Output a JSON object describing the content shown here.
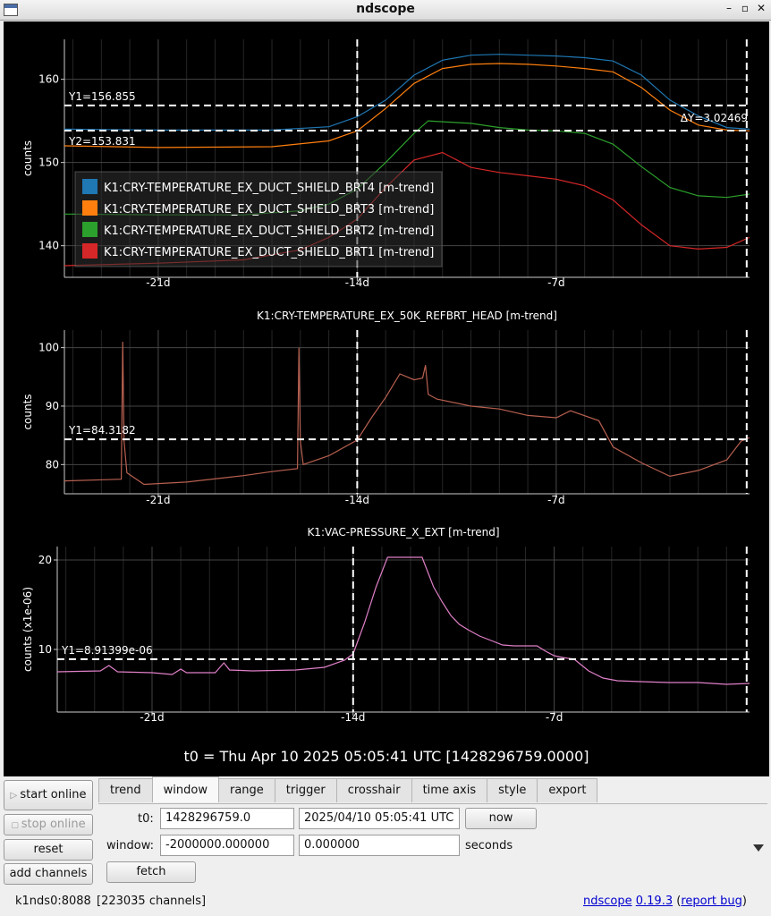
{
  "window": {
    "title": "ndscope"
  },
  "main_title": "t0 = Thu Apr 10 2025 05:05:41 UTC [1428296759.0000]",
  "chart_data": [
    {
      "type": "line",
      "title": "",
      "ylabel": "counts",
      "xlim": [
        -24.3,
        -0.2
      ],
      "ylim": [
        136.2,
        164.8
      ],
      "yticks": [
        140,
        150,
        160
      ],
      "xticks": [
        {
          "v": -21,
          "label": "-21d"
        },
        {
          "v": -14,
          "label": "-14d"
        },
        {
          "v": -7,
          "label": "-7d"
        }
      ],
      "grid": true,
      "legend": "top-left",
      "cursors": {
        "vertical": [
          -14.0,
          -0.3
        ],
        "horizontal": [
          {
            "value": 156.855,
            "label": "Y1=156.855"
          },
          {
            "value": 153.831,
            "label": "Y2=153.831"
          }
        ],
        "delta_label": "ΔY=3.02469"
      },
      "series": [
        {
          "name": "K1:CRY-TEMPERATURE_EX_DUCT_SHIELD_BRT4 [m-trend]",
          "color": "#1f77b4",
          "x": [
            -24.3,
            -21,
            -17,
            -15,
            -14,
            -13,
            -12,
            -11,
            -10,
            -9,
            -8,
            -7,
            -6,
            -5,
            -4,
            -3,
            -2,
            -1,
            -0.2
          ],
          "y": [
            154,
            153.9,
            153.9,
            154.3,
            155.5,
            157.5,
            160.5,
            162.3,
            162.9,
            163.0,
            162.9,
            162.8,
            162.6,
            162.2,
            160.5,
            157.5,
            155.6,
            154.2,
            154.0
          ]
        },
        {
          "name": "K1:CRY-TEMPERATURE_EX_DUCT_SHIELD_BRT3 [m-trend]",
          "color": "#ff7f0e",
          "x": [
            -24.3,
            -21,
            -17,
            -15,
            -14,
            -13,
            -12,
            -11,
            -10,
            -9,
            -8,
            -7,
            -6,
            -5,
            -4,
            -3,
            -2,
            -1,
            -0.2
          ],
          "y": [
            152.0,
            151.8,
            151.9,
            152.6,
            153.8,
            156.5,
            159.5,
            161.3,
            161.8,
            161.9,
            161.8,
            161.6,
            161.3,
            160.9,
            159.0,
            156.3,
            154.5,
            153.9,
            153.8
          ]
        },
        {
          "name": "K1:CRY-TEMPERATURE_EX_DUCT_SHIELD_BRT2 [m-trend]",
          "color": "#2ca02c",
          "x": [
            -24.3,
            -21,
            -18,
            -16,
            -15,
            -14,
            -13,
            -12,
            -11.5,
            -11,
            -10,
            -9,
            -8,
            -7,
            -6,
            -5,
            -4,
            -3,
            -2,
            -1,
            -0.2
          ],
          "y": [
            143.8,
            143.7,
            143.7,
            144.2,
            145.0,
            146.8,
            150.0,
            153.5,
            155.0,
            154.9,
            154.7,
            154.2,
            153.9,
            153.8,
            153.5,
            152.2,
            149.5,
            147.0,
            146.0,
            145.8,
            146.2
          ]
        },
        {
          "name": "K1:CRY-TEMPERATURE_EX_DUCT_SHIELD_BRT1 [m-trend]",
          "color": "#d62728",
          "x": [
            -24.3,
            -21,
            -18,
            -16,
            -15,
            -14,
            -13,
            -12,
            -11,
            -10,
            -9,
            -8,
            -7,
            -6,
            -5,
            -4,
            -3,
            -2,
            -1,
            -0.2
          ],
          "y": [
            137.6,
            137.9,
            138.3,
            139.5,
            141.0,
            143.2,
            147.0,
            150.3,
            151.2,
            149.4,
            148.8,
            148.4,
            148.0,
            147.2,
            145.5,
            142.5,
            140.0,
            139.6,
            139.8,
            141.0
          ]
        }
      ]
    },
    {
      "type": "line",
      "title": "K1:CRY-TEMPERATURE_EX_50K_REFBRT_HEAD [m-trend]",
      "ylabel": "counts",
      "xlim": [
        -24.3,
        -0.2
      ],
      "ylim": [
        75,
        103
      ],
      "yticks": [
        80,
        90,
        100
      ],
      "xticks": [
        {
          "v": -21,
          "label": "-21d"
        },
        {
          "v": -14,
          "label": "-14d"
        },
        {
          "v": -7,
          "label": "-7d"
        }
      ],
      "grid": true,
      "cursors": {
        "vertical": [
          -14.0,
          -0.3
        ],
        "horizontal": [
          {
            "value": 84.3182,
            "label": "Y1=84.3182"
          }
        ]
      },
      "series": [
        {
          "name": "K1:CRY-TEMPERATURE_EX_50K_REFBRT_HEAD [m-trend]",
          "color": "#b86050",
          "x": [
            -24.3,
            -22.3,
            -22.25,
            -22.2,
            -22.1,
            -21.5,
            -20,
            -18,
            -17,
            -16.1,
            -16.05,
            -16.0,
            -15.9,
            -15,
            -14,
            -13.5,
            -13,
            -12.5,
            -12,
            -11.7,
            -11.6,
            -11.5,
            -11.2,
            -10,
            -9,
            -8,
            -7,
            -6.5,
            -5.5,
            -5,
            -4,
            -3,
            -2,
            -1,
            -0.5,
            -0.2
          ],
          "y": [
            77.2,
            77.5,
            101,
            84,
            78.6,
            76.6,
            77.0,
            78.1,
            78.8,
            79.3,
            100,
            84,
            80.0,
            81.5,
            84.2,
            88.0,
            91.5,
            95.5,
            94.5,
            94.8,
            97,
            92,
            91.2,
            90.0,
            89.5,
            88.4,
            88.0,
            89.2,
            87.5,
            83.0,
            80.3,
            78.0,
            79.0,
            80.8,
            84.0,
            84.6
          ]
        }
      ]
    },
    {
      "type": "line",
      "title": "K1:VAC-PRESSURE_X_EXT [m-trend]",
      "ylabel": "counts (x1e-06)",
      "xlim": [
        -24.3,
        -0.2
      ],
      "ylim": [
        3,
        21.5
      ],
      "yticks": [
        10,
        20
      ],
      "xticks": [
        {
          "v": -21,
          "label": "-21d"
        },
        {
          "v": -14,
          "label": "-14d"
        },
        {
          "v": -7,
          "label": "-7d"
        }
      ],
      "grid": true,
      "cursors": {
        "vertical": [
          -14.0,
          -0.3
        ],
        "horizontal": [
          {
            "value": 8.91399,
            "label": "Y1=8.91399e-06"
          }
        ]
      },
      "series": [
        {
          "name": "K1:VAC-PRESSURE_X_EXT [m-trend]",
          "color": "#e080c8",
          "x": [
            -24.3,
            -22.8,
            -22.5,
            -22.2,
            -21,
            -20.3,
            -20.0,
            -19.8,
            -18.8,
            -18.5,
            -18.3,
            -17.5,
            -16,
            -15,
            -14.3,
            -14.0,
            -13.6,
            -13.2,
            -12.8,
            -12.4,
            -12.0,
            -11.6,
            -11.2,
            -10.9,
            -10.6,
            -10.3,
            -10.0,
            -9.6,
            -9.2,
            -8.8,
            -8.4,
            -7.6,
            -7.3,
            -7.0,
            -6.7,
            -6.3,
            -5.8,
            -5.3,
            -4.8,
            -4,
            -3,
            -2,
            -1,
            -0.2
          ],
          "y": [
            7.5,
            7.6,
            8.2,
            7.5,
            7.4,
            7.2,
            7.8,
            7.4,
            7.4,
            8.5,
            7.7,
            7.6,
            7.7,
            8.0,
            8.8,
            9.5,
            13,
            17,
            20.3,
            20.3,
            20.3,
            20.3,
            17.0,
            15.3,
            13.8,
            12.8,
            12.2,
            11.5,
            11.0,
            10.5,
            10.4,
            10.4,
            9.8,
            9.3,
            9.1,
            8.9,
            7.6,
            6.8,
            6.5,
            6.4,
            6.3,
            6.3,
            6.1,
            6.2
          ]
        }
      ]
    }
  ],
  "controls": {
    "start_online": "start online",
    "stop_online": "stop online",
    "reset": "reset",
    "add_channels": "add channels",
    "tabs": [
      "trend",
      "window",
      "range",
      "trigger",
      "crosshair",
      "time axis",
      "style",
      "export"
    ],
    "active_tab": "window",
    "t0_label": "t0:",
    "t0_gps": "1428296759.0",
    "t0_utc": "2025/04/10 05:05:41 UTC",
    "now_button": "now",
    "window_label": "window:",
    "window_start": "-2000000.000000",
    "window_end": "0.000000",
    "seconds_label": "seconds",
    "fetch_button": "fetch"
  },
  "status": {
    "server": "k1nds0:8088",
    "channels": "[223035 channels]",
    "app_link": "ndscope",
    "version": "0.19.3",
    "open_paren": "(",
    "report_bug": "report bug",
    "close_paren": ")"
  }
}
